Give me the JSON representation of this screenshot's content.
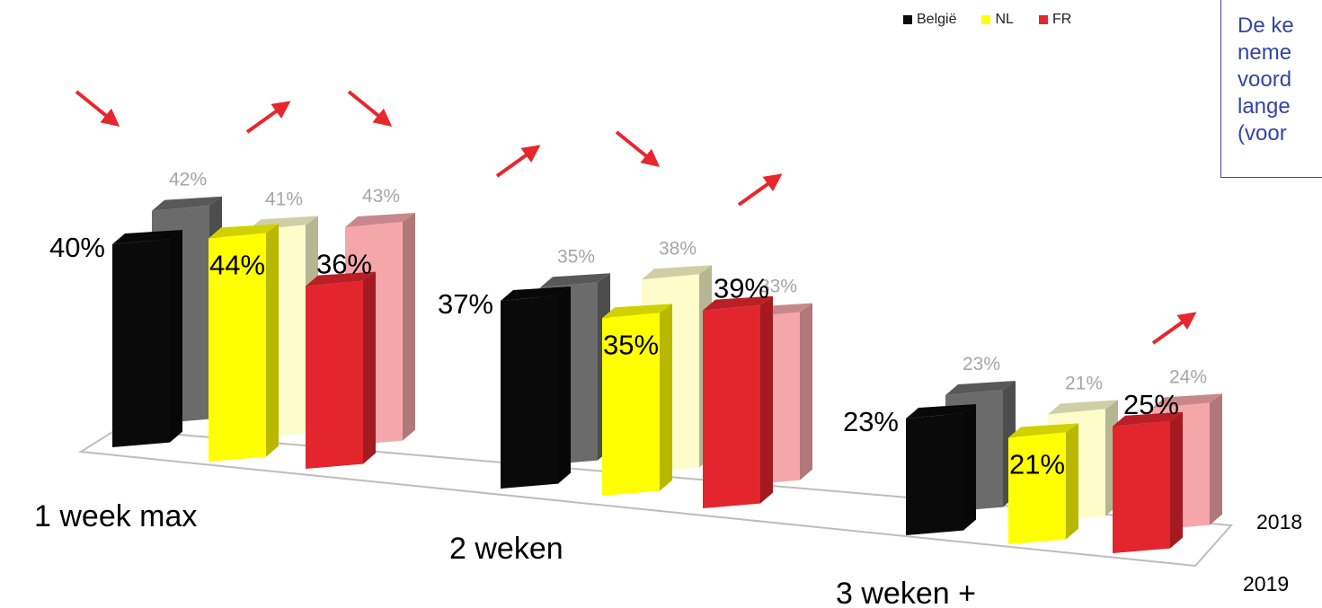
{
  "chart_data": {
    "type": "bar",
    "categories": [
      "1 week max",
      "2 weken",
      "3 weken +"
    ],
    "depth_labels": [
      "2018",
      "2019"
    ],
    "legend": [
      "België",
      "NL",
      "FR"
    ],
    "series": [
      {
        "name": "België",
        "year": "2019",
        "values": [
          40,
          37,
          23
        ],
        "labels": [
          "40%",
          "37%",
          "23%"
        ]
      },
      {
        "name": "België",
        "year": "2018",
        "values": [
          42,
          35,
          23
        ],
        "labels": [
          "42%",
          "35%",
          "23%"
        ]
      },
      {
        "name": "NL",
        "year": "2019",
        "values": [
          44,
          35,
          21
        ],
        "labels": [
          "44%",
          "35%",
          "21%"
        ]
      },
      {
        "name": "NL",
        "year": "2018",
        "values": [
          41,
          38,
          21
        ],
        "labels": [
          "41%",
          "38%",
          "21%"
        ]
      },
      {
        "name": "FR",
        "year": "2019",
        "values": [
          36,
          39,
          25
        ],
        "labels": [
          "36%",
          "39%",
          "25%"
        ]
      },
      {
        "name": "FR",
        "year": "2018",
        "values": [
          43,
          33,
          24
        ],
        "labels": [
          "43%",
          "33%",
          "24%"
        ]
      }
    ],
    "trend_arrows": [
      {
        "category": "1 week max",
        "country": "België",
        "direction": "down"
      },
      {
        "category": "1 week max",
        "country": "NL",
        "direction": "up"
      },
      {
        "category": "1 week max",
        "country": "FR",
        "direction": "down"
      },
      {
        "category": "2 weken",
        "country": "België",
        "direction": "up"
      },
      {
        "category": "2 weken",
        "country": "NL",
        "direction": "down"
      },
      {
        "category": "2 weken",
        "country": "FR",
        "direction": "up"
      },
      {
        "category": "3 weken +",
        "country": "FR",
        "direction": "up"
      }
    ],
    "colors": {
      "belgie_2019": "#0a0a0a",
      "belgie_2018": "#6b6b6b",
      "nl_2019": "#ffff00",
      "nl_2018": "#fdfdcc",
      "fr_2019": "#e3252e",
      "fr_2018": "#f4a6a9",
      "arrow": "#e8262e",
      "note_text": "#3344a8"
    }
  },
  "note": {
    "lines": [
      "De ke",
      "neme",
      "voord",
      "lange",
      "(voor"
    ]
  }
}
